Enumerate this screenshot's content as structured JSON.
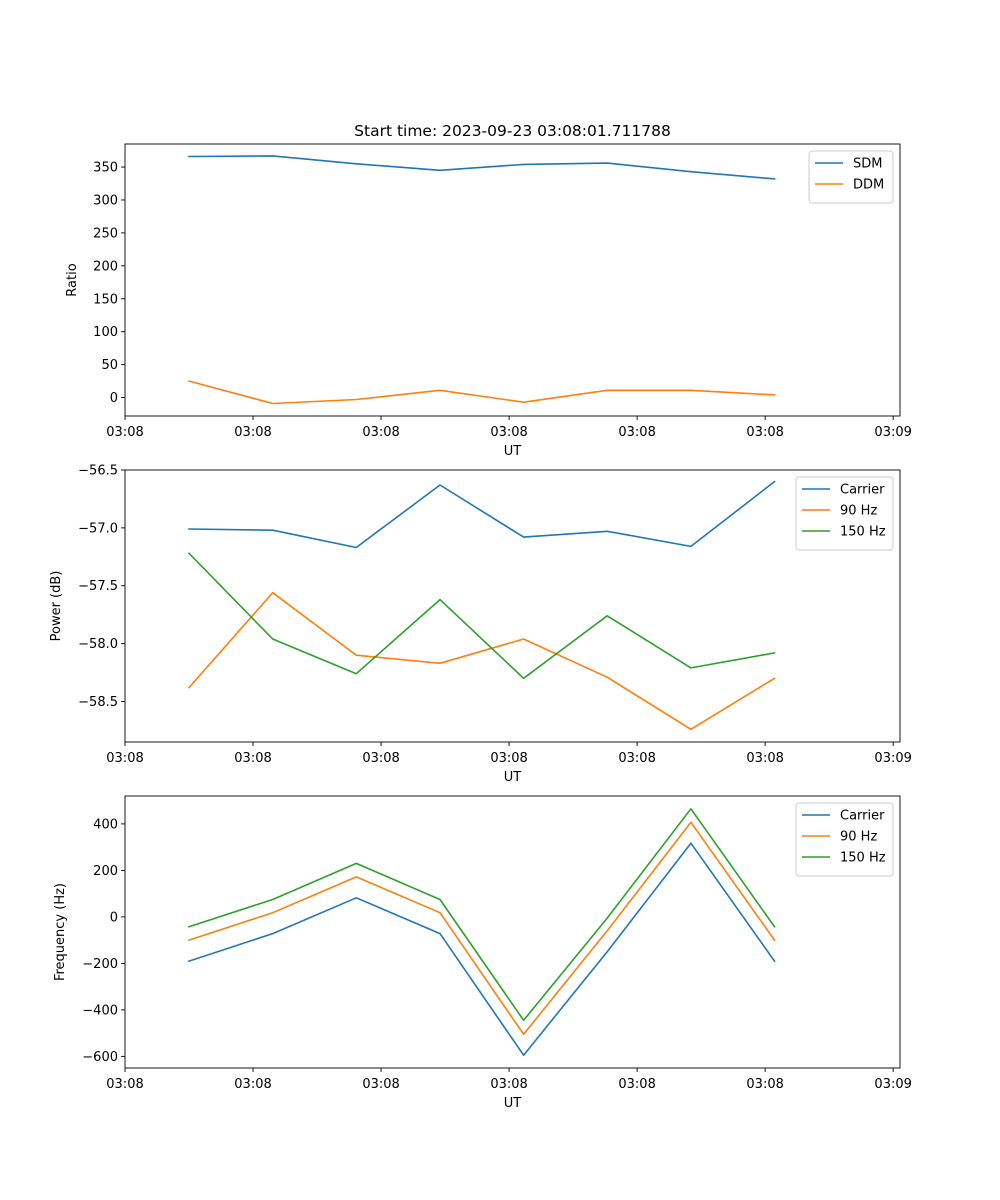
{
  "colors": {
    "blue": "#1f77b4",
    "orange": "#ff7f0e",
    "green": "#2ca02c"
  },
  "figure_title": "Start time: 2023-09-23 03:08:01.711788",
  "chart_data": [
    {
      "type": "line",
      "ylabel": "Ratio",
      "xlabel": "UT",
      "xlim": [
        0,
        9.08
      ],
      "ylim": [
        -28,
        385
      ],
      "yticks": [
        0,
        50,
        100,
        150,
        200,
        250,
        300,
        350
      ],
      "ytick_labels": [
        "0",
        "50",
        "100",
        "150",
        "200",
        "250",
        "300",
        "350"
      ],
      "xticks": [
        0,
        1.5,
        3,
        4.5,
        6,
        7.5,
        9
      ],
      "xtick_labels": [
        "03:08",
        "03:08",
        "03:08",
        "03:08",
        "03:08",
        "03:08",
        "03:09"
      ],
      "x": [
        0.75,
        1.73,
        2.71,
        3.69,
        4.67,
        5.65,
        6.63,
        7.61
      ],
      "legend_loc": "upper right",
      "series": [
        {
          "name": "SDM",
          "color": "#1f77b4",
          "values": [
            366,
            367,
            355,
            345,
            354,
            356,
            343,
            332
          ]
        },
        {
          "name": "DDM",
          "color": "#ff7f0e",
          "values": [
            25,
            -9,
            -3,
            11,
            -7,
            11,
            11,
            4
          ]
        }
      ]
    },
    {
      "type": "line",
      "ylabel": "Power (dB)",
      "xlabel": "UT",
      "xlim": [
        0,
        9.08
      ],
      "ylim": [
        -58.85,
        -56.5
      ],
      "yticks": [
        -58.5,
        -58.0,
        -57.5,
        -57.0,
        -56.5
      ],
      "ytick_labels": [
        "−58.5",
        "−58.0",
        "−57.5",
        "−57.0",
        "−56.5"
      ],
      "xticks": [
        0,
        1.5,
        3,
        4.5,
        6,
        7.5,
        9
      ],
      "xtick_labels": [
        "03:08",
        "03:08",
        "03:08",
        "03:08",
        "03:08",
        "03:08",
        "03:09"
      ],
      "x": [
        0.75,
        1.73,
        2.71,
        3.69,
        4.67,
        5.65,
        6.63,
        7.61
      ],
      "legend_loc": "upper right",
      "series": [
        {
          "name": "Carrier",
          "color": "#1f77b4",
          "values": [
            -57.01,
            -57.02,
            -57.17,
            -56.63,
            -57.08,
            -57.03,
            -57.16,
            -56.6
          ]
        },
        {
          "name": "90 Hz",
          "color": "#ff7f0e",
          "values": [
            -58.38,
            -57.56,
            -58.1,
            -58.17,
            -57.96,
            -58.29,
            -58.74,
            -58.3
          ]
        },
        {
          "name": "150 Hz",
          "color": "#2ca02c",
          "values": [
            -57.22,
            -57.96,
            -58.26,
            -57.62,
            -58.3,
            -57.76,
            -58.21,
            -58.08
          ]
        }
      ]
    },
    {
      "type": "line",
      "ylabel": "Frequency (Hz)",
      "xlabel": "UT",
      "xlim": [
        0,
        9.08
      ],
      "ylim": [
        -650,
        520
      ],
      "yticks": [
        -600,
        -400,
        -200,
        0,
        200,
        400
      ],
      "ytick_labels": [
        "−600",
        "−400",
        "−200",
        "0",
        "200",
        "400"
      ],
      "xticks": [
        0,
        1.5,
        3,
        4.5,
        6,
        7.5,
        9
      ],
      "xtick_labels": [
        "03:08",
        "03:08",
        "03:08",
        "03:08",
        "03:08",
        "03:08",
        "03:09"
      ],
      "x": [
        0.75,
        1.73,
        2.71,
        3.69,
        4.67,
        5.65,
        6.63,
        7.61
      ],
      "legend_loc": "upper right",
      "series": [
        {
          "name": "Carrier",
          "color": "#1f77b4",
          "values": [
            -190,
            -72,
            82,
            -72,
            -595,
            -150,
            317,
            -190
          ]
        },
        {
          "name": "90 Hz",
          "color": "#ff7f0e",
          "values": [
            -100,
            18,
            172,
            18,
            -505,
            -60,
            407,
            -100
          ]
        },
        {
          "name": "150 Hz",
          "color": "#2ca02c",
          "values": [
            -42,
            75,
            230,
            75,
            -445,
            -5,
            465,
            -42
          ]
        }
      ]
    }
  ]
}
